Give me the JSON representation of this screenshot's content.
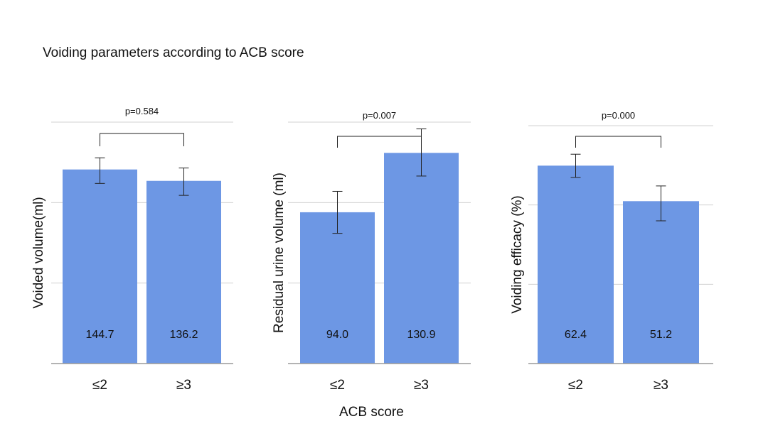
{
  "figure": {
    "title": "Voiding parameters according to ACB score",
    "xlabel": "ACB score"
  },
  "colors": {
    "bar": "#6d97e4",
    "grid": "#d0d0d0",
    "axis": "#9a9a9a",
    "error": "#222222",
    "text": "#111111"
  },
  "chart_data": [
    {
      "type": "bar",
      "categories": [
        "≤2",
        "≥3"
      ],
      "values": [
        144.7,
        136.2
      ],
      "value_labels": [
        "144.7",
        "136.2"
      ],
      "error_low": [
        134.3,
        125.4
      ],
      "error_high": [
        153.4,
        145.8
      ],
      "ylabel": "Voided volume(ml)",
      "ylim": [
        0,
        180
      ],
      "yticks": [
        0,
        60,
        120,
        180
      ],
      "grid": true,
      "annotation": "p=0.584"
    },
    {
      "type": "bar",
      "categories": [
        "≤2",
        "≥3"
      ],
      "values": [
        94.0,
        130.9
      ],
      "value_labels": [
        "94.0",
        "130.9"
      ],
      "error_low": [
        80.9,
        116.5
      ],
      "error_high": [
        107.0,
        145.8
      ],
      "ylabel": "Residual urine volume (ml)",
      "ylim": [
        0,
        150
      ],
      "yticks": [
        0,
        50,
        100,
        150
      ],
      "grid": true,
      "annotation": "p=0.007"
    },
    {
      "type": "bar",
      "categories": [
        "≤2",
        "≥3"
      ],
      "values": [
        62.4,
        51.2
      ],
      "value_labels": [
        "62.4",
        "51.2"
      ],
      "error_low": [
        58.7,
        45.0
      ],
      "error_high": [
        66.0,
        56.0
      ],
      "ylabel": "Voiding efficacy (%)",
      "ylim": [
        0,
        75
      ],
      "yticks": [
        0,
        25,
        50,
        75
      ],
      "grid": true,
      "annotation": "p=0.000"
    }
  ]
}
